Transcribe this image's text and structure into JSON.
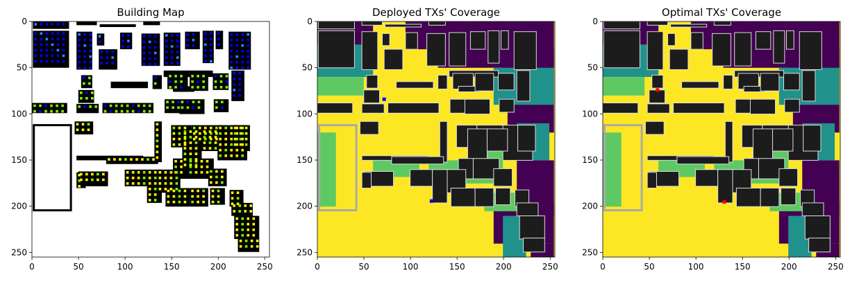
{
  "figure": {
    "background": "#ffffff"
  },
  "chart_data": [
    {
      "type": "heatmap",
      "title": "Building Map",
      "xlim": [
        0,
        255
      ],
      "ylim": [
        255,
        0
      ],
      "xticks": [
        0,
        50,
        100,
        150,
        200,
        250
      ],
      "yticks": [
        0,
        50,
        100,
        150,
        200,
        250
      ],
      "background_color": "#ffffff",
      "building_color": "#000000",
      "marker_colors": [
        "#0000ff",
        "#1e90ff",
        "#7cfc00",
        "#ffff00"
      ]
    },
    {
      "type": "heatmap",
      "title": "Deployed TXs' Coverage",
      "xlim": [
        0,
        255
      ],
      "ylim": [
        255,
        0
      ],
      "xticks": [
        0,
        50,
        100,
        150,
        200,
        250
      ],
      "yticks": [
        0,
        50,
        100,
        150,
        200,
        250
      ],
      "colormap": [
        "#440154",
        "#21918c",
        "#5ec962",
        "#fde725"
      ],
      "background_color": "#fde725",
      "building_color": "#1c1c1c",
      "transmitters": [
        {
          "x": 72,
          "y": 84,
          "color": "#0000ff"
        },
        {
          "x": 123,
          "y": 194,
          "color": "#0000ff"
        }
      ]
    },
    {
      "type": "heatmap",
      "title": "Optimal TXs' Coverage",
      "xlim": [
        0,
        255
      ],
      "ylim": [
        255,
        0
      ],
      "xticks": [
        0,
        50,
        100,
        150,
        200,
        250
      ],
      "yticks": [
        0,
        50,
        100,
        150,
        200,
        250
      ],
      "colormap": [
        "#440154",
        "#21918c",
        "#5ec962",
        "#fde725"
      ],
      "background_color": "#fde725",
      "building_color": "#1c1c1c",
      "transmitters": [
        {
          "x": 59,
          "y": 74,
          "color": "#ff0000"
        },
        {
          "x": 131,
          "y": 195,
          "color": "#ff0000"
        }
      ]
    }
  ]
}
